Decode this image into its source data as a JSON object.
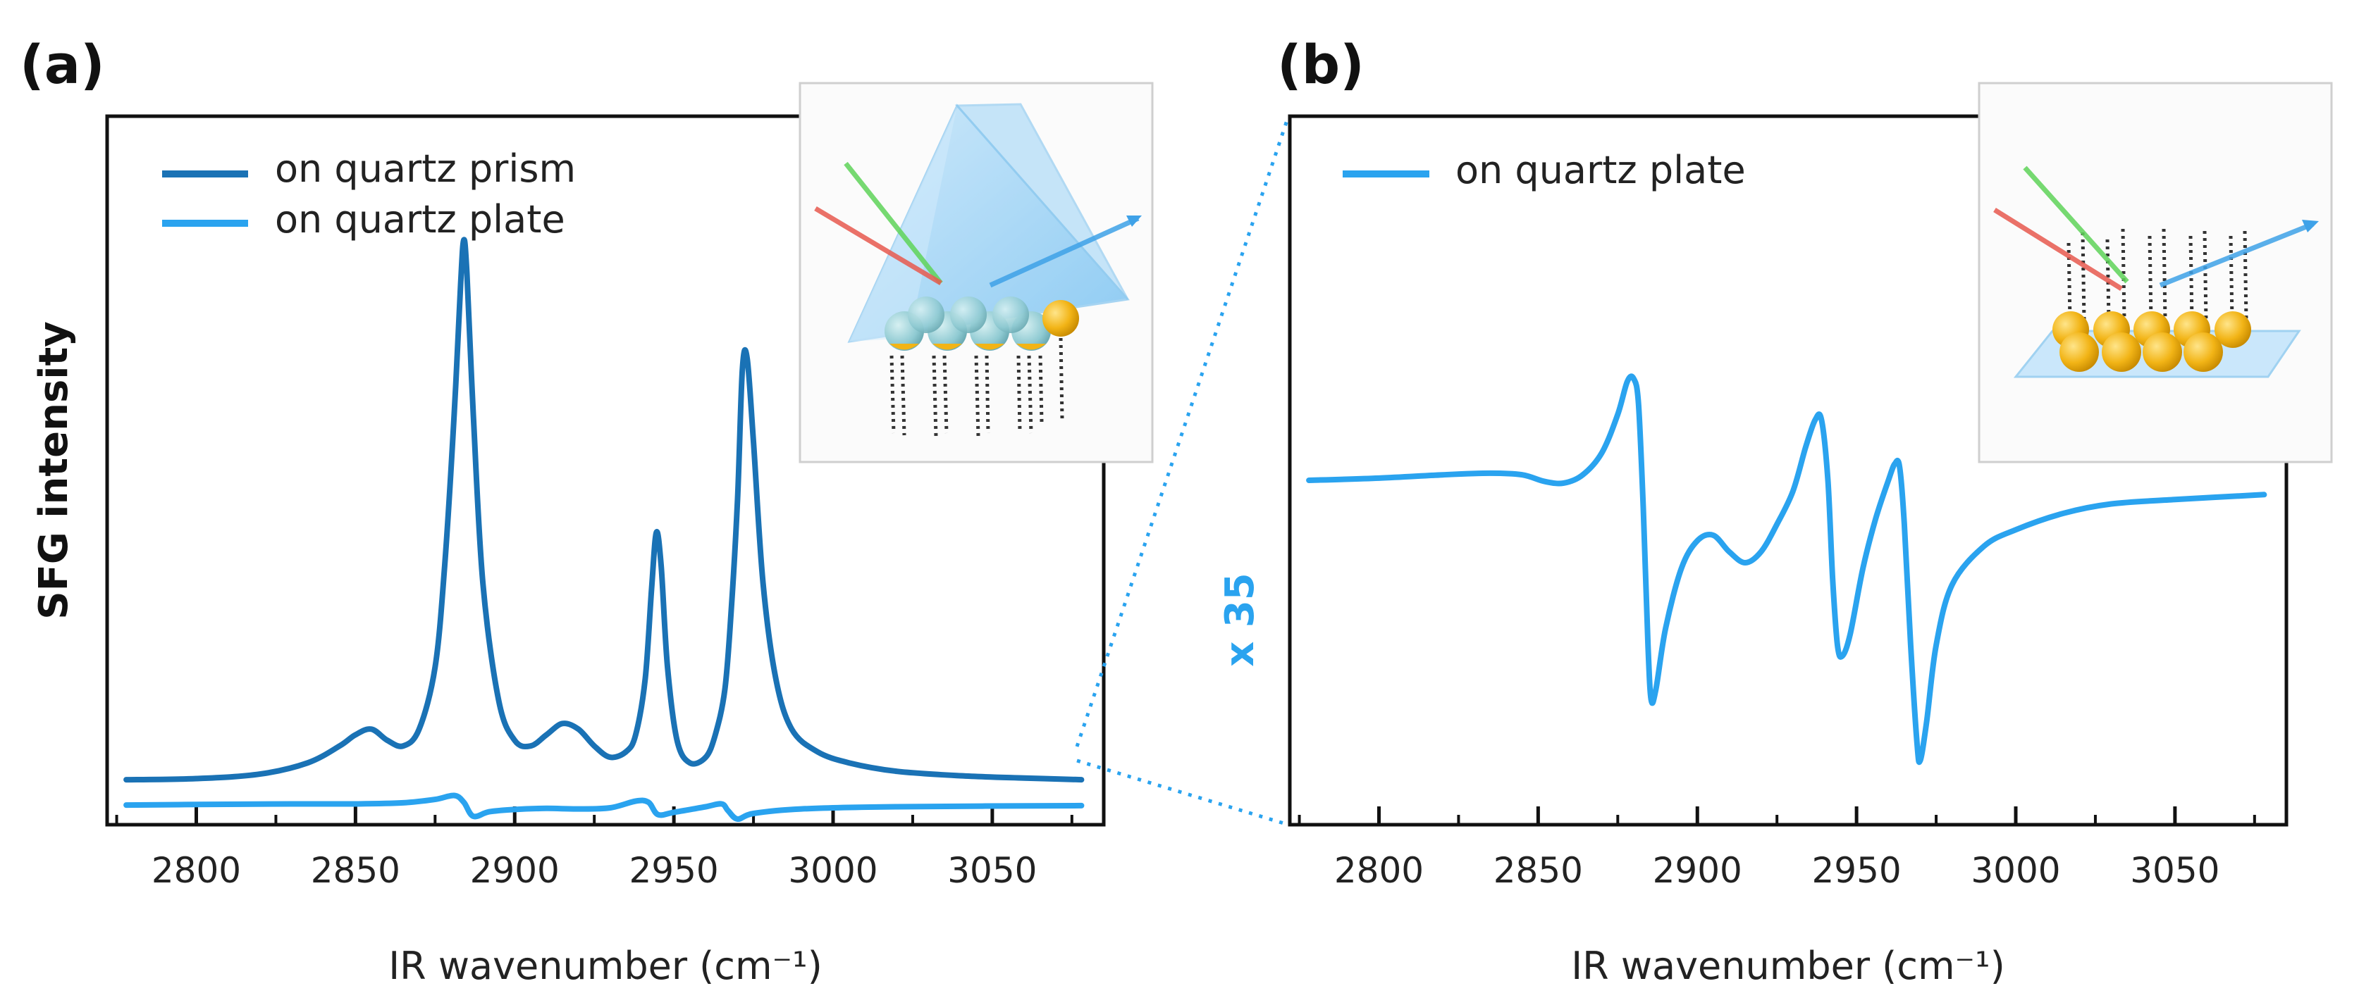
{
  "colors": {
    "prism": "#1a72b5",
    "plate": "#2aa3ef",
    "axis": "#111111",
    "scale": "#2aa3ef"
  },
  "chart_data": [
    {
      "panel": "(a)",
      "type": "line",
      "xlabel": "IR wavenumber (cm⁻¹)",
      "ylabel": "SFG intensity",
      "xlim": [
        2772,
        3085
      ],
      "ylim": [
        -0.08,
        1.18
      ],
      "xticks": [
        2800,
        2850,
        2900,
        2950,
        3000,
        3050
      ],
      "grid": false,
      "legend_position": "top-left",
      "series": [
        {
          "name": "on quartz prism",
          "color": "#1a72b5",
          "x": [
            2778,
            2800,
            2820,
            2835,
            2845,
            2850,
            2855,
            2860,
            2865,
            2870,
            2875,
            2878,
            2881,
            2883,
            2884,
            2885,
            2887,
            2890,
            2895,
            2900,
            2905,
            2910,
            2915,
            2920,
            2925,
            2930,
            2935,
            2938,
            2941,
            2943,
            2944.5,
            2946,
            2948,
            2951,
            2955,
            2960,
            2963,
            2966,
            2968,
            2970,
            2971.5,
            2973,
            2975,
            2978,
            2982,
            2987,
            2995,
            3005,
            3020,
            3040,
            3060,
            3078
          ],
          "y": [
            0.0,
            0.002,
            0.01,
            0.03,
            0.06,
            0.08,
            0.09,
            0.07,
            0.06,
            0.09,
            0.2,
            0.38,
            0.65,
            0.88,
            0.96,
            0.9,
            0.65,
            0.35,
            0.14,
            0.07,
            0.06,
            0.08,
            0.1,
            0.09,
            0.06,
            0.04,
            0.05,
            0.08,
            0.18,
            0.34,
            0.44,
            0.38,
            0.2,
            0.07,
            0.03,
            0.04,
            0.08,
            0.16,
            0.3,
            0.5,
            0.73,
            0.75,
            0.6,
            0.35,
            0.18,
            0.09,
            0.05,
            0.03,
            0.015,
            0.007,
            0.003,
            0.0
          ]
        },
        {
          "name": "on quartz plate",
          "color": "#2aa3ef",
          "x": [
            2778,
            2800,
            2830,
            2850,
            2865,
            2875,
            2881,
            2884,
            2887,
            2892,
            2900,
            2910,
            2920,
            2930,
            2938,
            2942,
            2945,
            2950,
            2960,
            2965,
            2967,
            2970,
            2975,
            2990,
            3020,
            3078
          ],
          "y": [
            -0.045,
            -0.044,
            -0.043,
            -0.043,
            -0.041,
            -0.035,
            -0.028,
            -0.04,
            -0.065,
            -0.057,
            -0.053,
            -0.051,
            -0.052,
            -0.05,
            -0.038,
            -0.04,
            -0.062,
            -0.058,
            -0.048,
            -0.043,
            -0.055,
            -0.07,
            -0.06,
            -0.052,
            -0.048,
            -0.046
          ]
        }
      ]
    },
    {
      "panel": "(b)",
      "type": "line",
      "xlabel": "IR wavenumber (cm⁻¹)",
      "scale_label": "x 35",
      "xlim": [
        2772,
        3085
      ],
      "ylim": [
        0,
        1
      ],
      "xticks": [
        2800,
        2850,
        2900,
        2950,
        3000,
        3050
      ],
      "grid": false,
      "legend_position": "top-left",
      "series": [
        {
          "name": "on quartz plate",
          "color": "#2aa3ef",
          "x": [
            2778,
            2800,
            2820,
            2835,
            2845,
            2852,
            2858,
            2864,
            2870,
            2875,
            2878,
            2880,
            2881.5,
            2883,
            2884.5,
            2885.5,
            2887,
            2890,
            2895,
            2900,
            2905,
            2910,
            2915,
            2920,
            2925,
            2930,
            2934,
            2937,
            2939,
            2941,
            2942.5,
            2944,
            2945.5,
            2948,
            2952,
            2956,
            2960,
            2962,
            2963.5,
            2965,
            2967,
            2969,
            2970,
            2972,
            2975,
            2980,
            2990,
            3000,
            3015,
            3030,
            3050,
            3078
          ],
          "y": [
            0.6,
            0.604,
            0.61,
            0.613,
            0.61,
            0.598,
            0.595,
            0.61,
            0.65,
            0.72,
            0.78,
            0.785,
            0.74,
            0.55,
            0.3,
            0.2,
            0.22,
            0.33,
            0.44,
            0.49,
            0.5,
            0.47,
            0.45,
            0.47,
            0.52,
            0.58,
            0.66,
            0.71,
            0.71,
            0.6,
            0.42,
            0.3,
            0.28,
            0.32,
            0.44,
            0.53,
            0.6,
            0.63,
            0.625,
            0.52,
            0.3,
            0.12,
            0.09,
            0.16,
            0.3,
            0.41,
            0.48,
            0.51,
            0.54,
            0.557,
            0.565,
            0.574
          ]
        }
      ]
    }
  ]
}
